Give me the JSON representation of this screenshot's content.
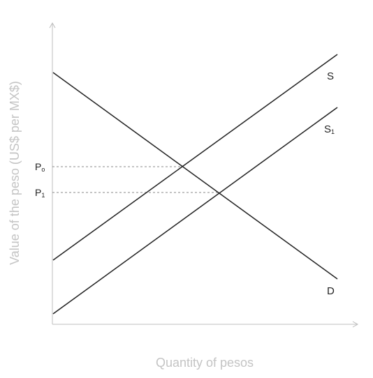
{
  "chart_data": {
    "type": "line",
    "xlabel": "Quantity of pesos",
    "ylabel": "Value of the peso (US$ per MX$)",
    "series": [
      {
        "name": "S",
        "role": "supply"
      },
      {
        "name": "S1",
        "role": "shifted supply"
      },
      {
        "name": "D",
        "role": "demand"
      }
    ],
    "equilibria": [
      {
        "price_label": "P0",
        "main": "P",
        "sub": "o"
      },
      {
        "price_label": "P1",
        "main": "P",
        "sub": "1"
      }
    ],
    "grid": false,
    "tick_labels": false
  },
  "labels": {
    "S": "S",
    "S1_main": "S",
    "S1_sub": "1",
    "D": "D",
    "P0_main": "P",
    "P0_sub": "o",
    "P1_main": "P",
    "P1_sub": "1"
  },
  "axes": {
    "x_title": "Quantity of pesos",
    "y_title": "Value of the peso (US$ per MX$)"
  },
  "colors": {
    "curves": "#222222",
    "axes": "#bdbdbd",
    "dashed": "#888888",
    "axis_title": "#c4c4c4"
  }
}
